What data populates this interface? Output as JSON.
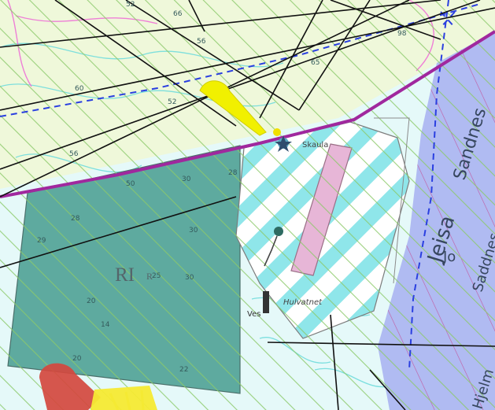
{
  "map": {
    "zone_label": "RI",
    "zone_suffix": "R",
    "place_labels": {
      "jeisa": "Jeisa",
      "sandnes": "Sandnes",
      "saddnes": "Saddnes",
      "hjelm": "Hjelm",
      "jo": "Jo",
      "ves": "Ves",
      "hulvann": "Hulvatnet",
      "skaula": "Skaula"
    },
    "contour_numbers": [
      "52",
      "66",
      "56",
      "60",
      "52",
      "65",
      "98",
      "56",
      "28",
      "50",
      "30",
      "28",
      "30",
      "29",
      "25",
      "20",
      "30",
      "14",
      "20",
      "22"
    ],
    "colors": {
      "background": "#ffffff",
      "light_cyan": "#dff7f7",
      "contour_cyan": "#6fdede",
      "hatch_green": "#8cc96a",
      "teal_zone": "#5ea99f",
      "purple_zone": "#a8b3ef",
      "pink_strip": "#e7b6d7",
      "magenta_line": "#a0289e",
      "blue_dash": "#2a3fe0",
      "yellow_marker": "#f1f000",
      "red_marker": "#d4483e",
      "black_line": "#111111"
    }
  }
}
